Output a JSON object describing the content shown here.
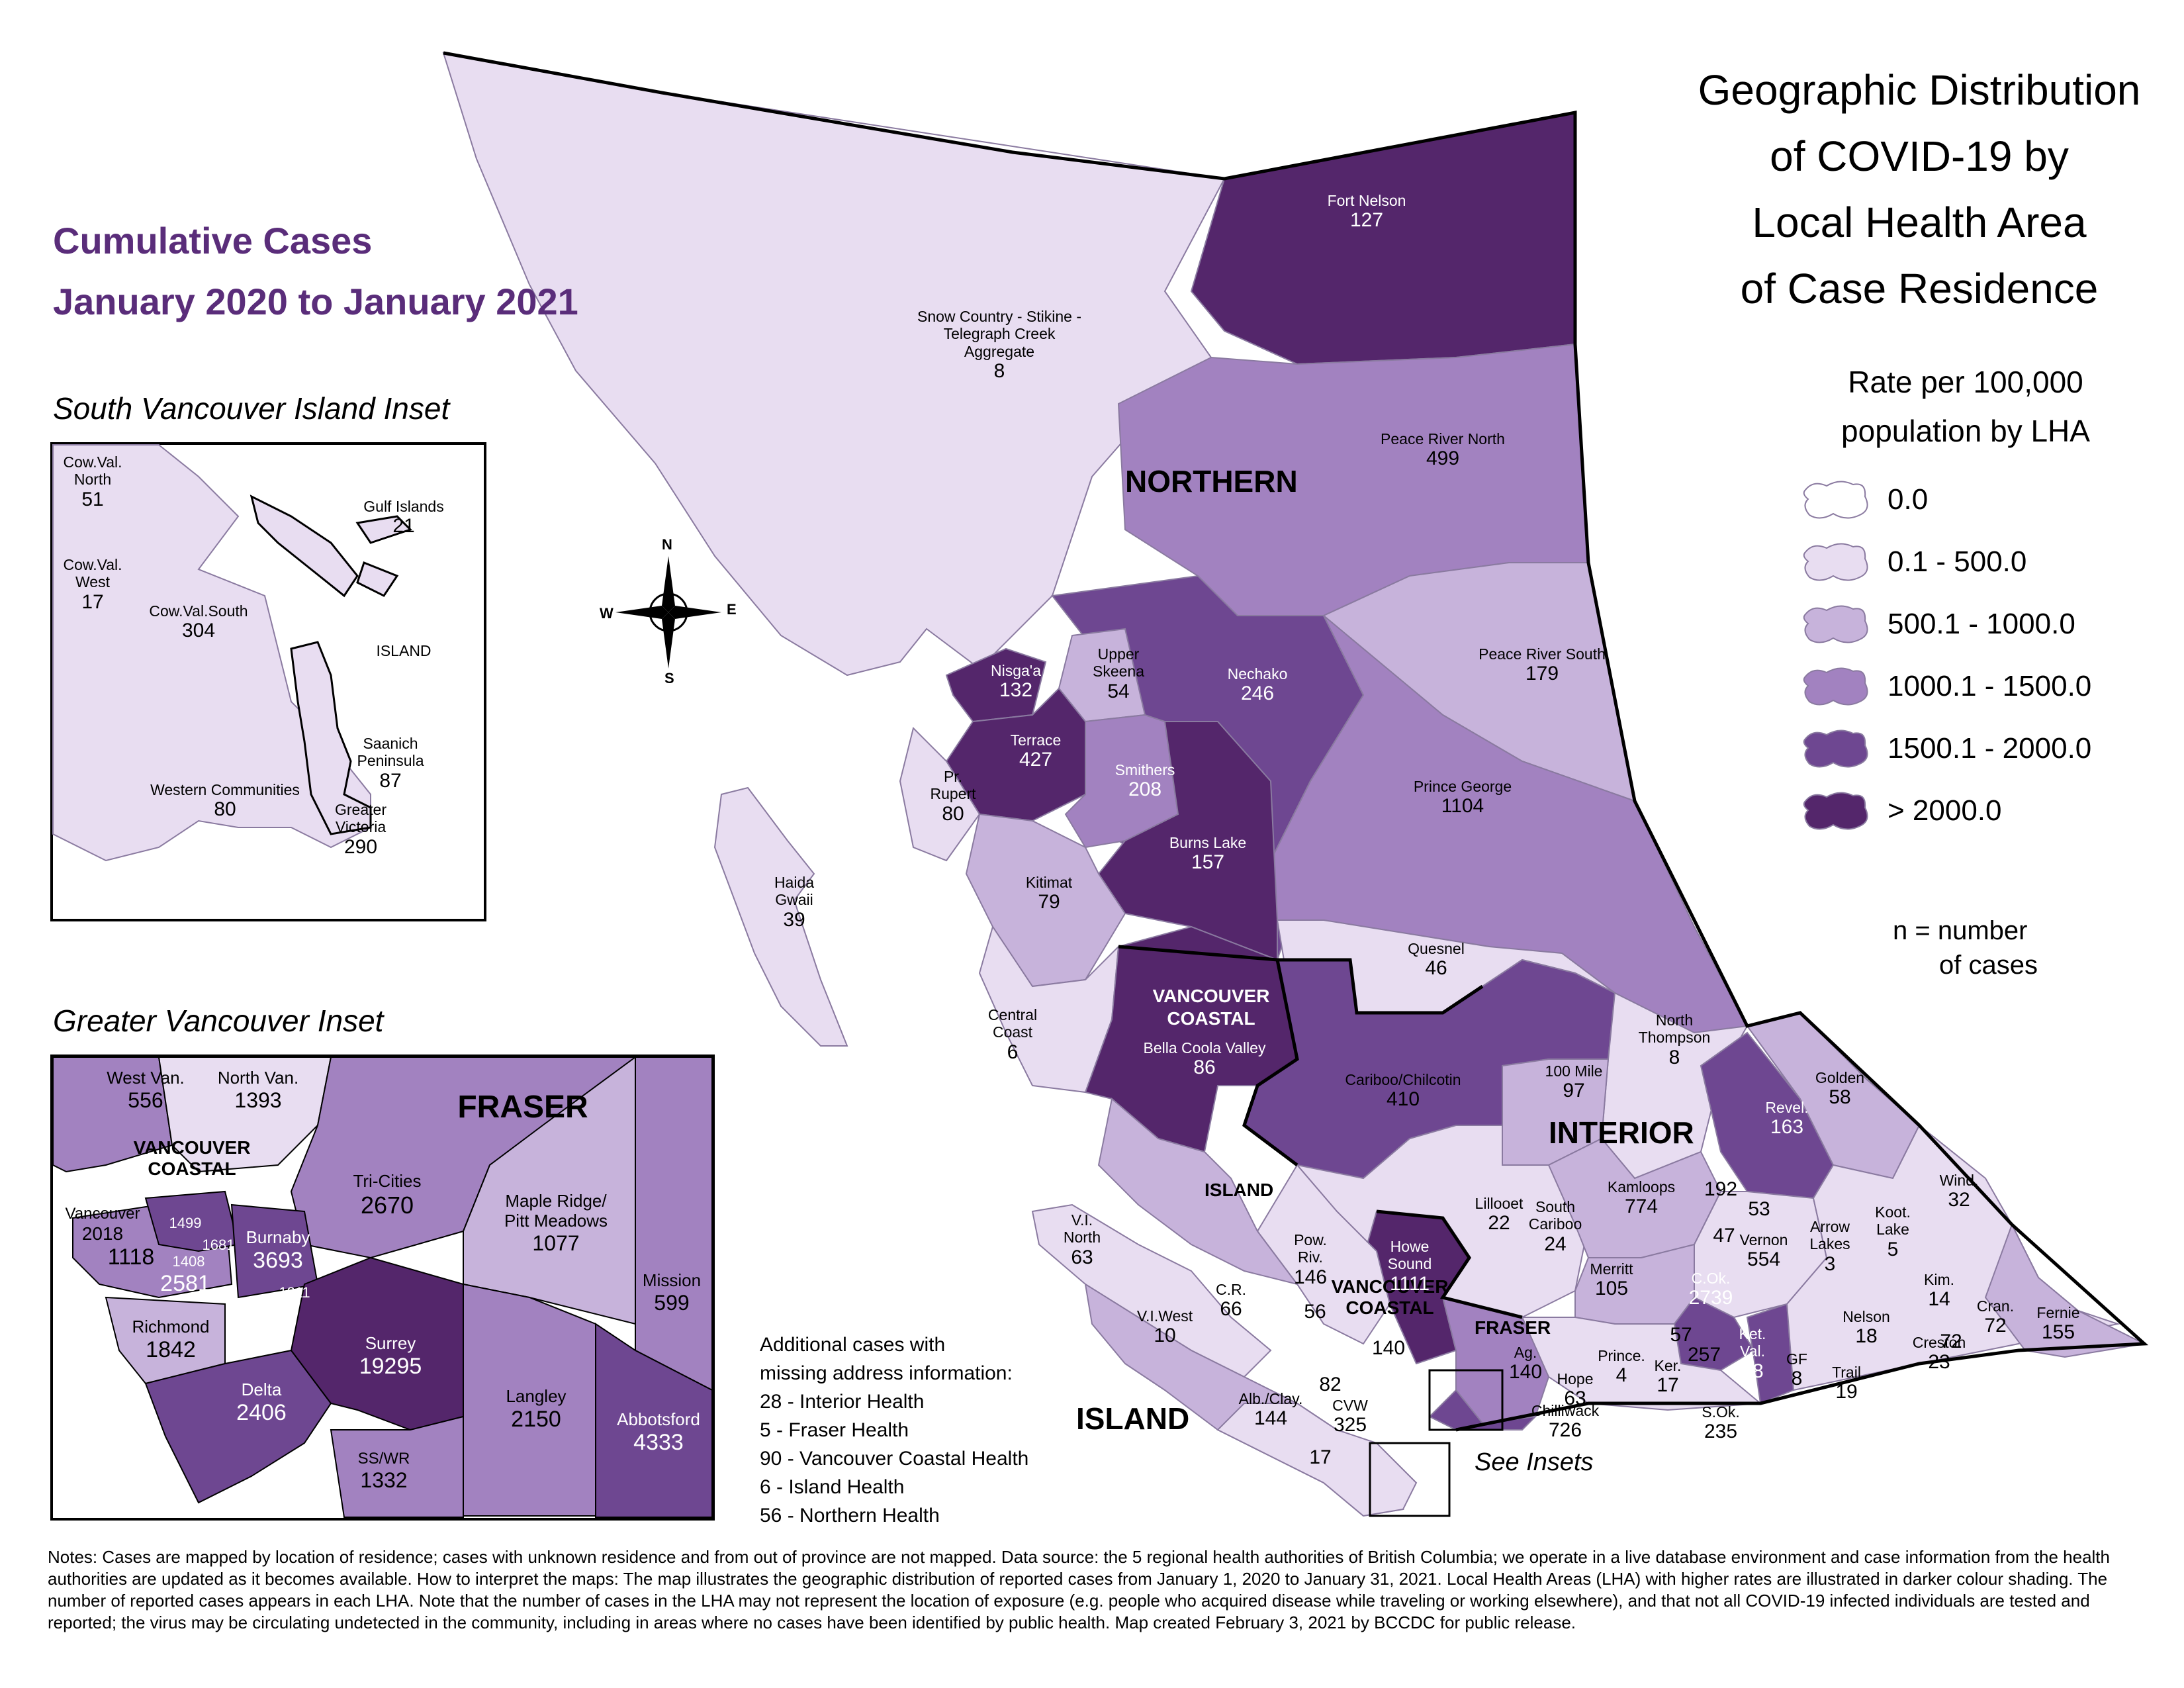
{
  "title": {
    "lines": [
      "Geographic Distribution",
      "of COVID-19 by",
      "Local Health Area",
      "of Case Residence"
    ]
  },
  "subtitle": {
    "line1": "Cumulative Cases",
    "line2": "January 2020 to January 2021"
  },
  "legend": {
    "title_line1": "Rate per 100,000",
    "title_line2": "population by LHA",
    "classes": [
      {
        "label": "0.0",
        "color": "#ffffff"
      },
      {
        "label": "0.1 - 500.0",
        "color": "#e8ddf1"
      },
      {
        "label": "500.1 - 1000.0",
        "color": "#c7b3db"
      },
      {
        "label": "1000.1 - 1500.0",
        "color": "#a282c0"
      },
      {
        "label": "1500.1 - 2000.0",
        "color": "#6e4791"
      },
      {
        "label": "> 2000.0",
        "color": "#54266b"
      }
    ],
    "n_note_line1": "n = number",
    "n_note_line2": "of cases"
  },
  "insets": {
    "south_vi_title": "South Vancouver Island Inset",
    "greater_van_title": "Greater Vancouver Inset",
    "see_insets": "See Insets"
  },
  "compass": {
    "n": "N",
    "s": "S",
    "e": "E",
    "w": "W"
  },
  "missing": {
    "heading1": "Additional cases with",
    "heading2": "missing address information:",
    "items": [
      "28 - Interior Health",
      "5 - Fraser Health",
      "90 - Vancouver Coastal Health",
      "6 - Island Health",
      "56 - Northern Health"
    ]
  },
  "regions": {
    "northern": "NORTHERN",
    "interior": "INTERIOR",
    "island": "ISLAND",
    "fraser": "FRASER",
    "vancouver_coastal_1": "VANCOUVER",
    "vancouver_coastal_2": "COASTAL"
  },
  "map_labels": [
    {
      "name": "Fort Nelson",
      "value": "127"
    },
    {
      "name": "Snow Country - Stikine - Telegraph Creek",
      "name2": "Aggregate",
      "value": "8"
    },
    {
      "name": "Peace River North",
      "value": "499"
    },
    {
      "name": "Peace River South",
      "value": "179"
    },
    {
      "name": "Nechako",
      "value": "246"
    },
    {
      "name": "Upper",
      "name2": "Skeena",
      "value": "54"
    },
    {
      "name": "Nisga'a",
      "value": "132"
    },
    {
      "name": "Terrace",
      "value": "427"
    },
    {
      "name": "Smithers",
      "value": "208"
    },
    {
      "name": "Burns Lake",
      "value": "157"
    },
    {
      "name": "Prince George",
      "value": "1104"
    },
    {
      "name": "Pr.",
      "name2": "Rupert",
      "value": "80"
    },
    {
      "name": "Haida",
      "name2": "Gwaii",
      "value": "39"
    },
    {
      "name": "Kitimat",
      "value": "79"
    },
    {
      "name": "Quesnel",
      "value": "46"
    },
    {
      "name": "Central",
      "name2": "Coast",
      "value": "6"
    },
    {
      "name": "Bella Coola Valley",
      "value": "86"
    },
    {
      "name": "Cariboo/Chilcotin",
      "value": "410"
    },
    {
      "name": "100 Mile",
      "value": "97"
    },
    {
      "name": "North",
      "name2": "Thompson",
      "value": "8"
    },
    {
      "name": "Revel.",
      "value": "163"
    },
    {
      "name": "Golden",
      "value": "58"
    },
    {
      "name": "Kamloops",
      "value": "774"
    },
    {
      "name": "Lillooet",
      "value": "22"
    },
    {
      "name": "South",
      "name2": "Cariboo",
      "value": "24"
    },
    {
      "name": "Vernon",
      "value": "554"
    },
    {
      "name": "Arrow",
      "name2": "Lakes",
      "value": "3"
    },
    {
      "name": "Koot.",
      "name2": "Lake",
      "value": "5"
    },
    {
      "name": "Wind.",
      "value": "32"
    },
    {
      "name": "Merritt",
      "value": "105"
    },
    {
      "name": "C.Ok.",
      "value": "2739"
    },
    {
      "name": "Kim.",
      "value": "14"
    },
    {
      "name": "Nelson",
      "value": "18"
    },
    {
      "name": "Cran.",
      "value": "72"
    },
    {
      "name": "Fernie",
      "value": "155"
    },
    {
      "name": "Creston",
      "value": "23"
    },
    {
      "name": "Ket.",
      "name2": "Val.",
      "value": "58"
    },
    {
      "name": "GF",
      "value": "8"
    },
    {
      "name": "Trail",
      "value": "19"
    },
    {
      "name": "S.Ok.",
      "value": "235"
    },
    {
      "name": "Ker.",
      "value": "17"
    },
    {
      "name": "Prince.",
      "value": "4"
    },
    {
      "name": "Hope",
      "value": "63"
    },
    {
      "name": "Chilliwack",
      "value": "726"
    },
    {
      "name": "Ag.",
      "value": "140"
    },
    {
      "name": "V.I.",
      "name2": "North",
      "value": "63"
    },
    {
      "name": "V.I.West",
      "value": "10"
    },
    {
      "name": "C.R.",
      "value": "66"
    },
    {
      "name": "Pow.",
      "name2": "Riv.",
      "value": "146"
    },
    {
      "name": "Howe",
      "name2": "Sound",
      "value": "1111"
    },
    {
      "name": "Alb./Clay.",
      "value": "144"
    },
    {
      "name": "CVW",
      "value": "325"
    },
    {
      "name": "",
      "value": "82"
    },
    {
      "name": "",
      "value": "17"
    },
    {
      "name": "",
      "value": "56"
    },
    {
      "name": "",
      "value": "140"
    },
    {
      "name": "",
      "value": "57"
    },
    {
      "name": "",
      "value": "257"
    },
    {
      "name": "",
      "value": "47"
    },
    {
      "name": "",
      "value": "53"
    },
    {
      "name": "",
      "value": "192"
    },
    {
      "name": "",
      "value": "72"
    }
  ],
  "svi_labels": [
    {
      "name": "Cow.Val.",
      "name2": "North",
      "value": "51"
    },
    {
      "name": "Gulf Islands",
      "value": "21"
    },
    {
      "name": "Cow.Val.",
      "name2": "West",
      "value": "17"
    },
    {
      "name": "Cow.Val.South",
      "value": "304"
    },
    {
      "name": "ISLAND",
      "value": ""
    },
    {
      "name": "Saanich",
      "name2": "Peninsula",
      "value": "87"
    },
    {
      "name": "Western Communities",
      "value": "80"
    },
    {
      "name": "Greater",
      "name2": "Victoria",
      "value": "290"
    }
  ],
  "gv_labels": [
    {
      "name": "West Van.",
      "value": "556"
    },
    {
      "name": "North Van.",
      "value": "1393"
    },
    {
      "name": "VANCOUVER COASTAL",
      "value": ""
    },
    {
      "name": "FRASER",
      "value": ""
    },
    {
      "name": "Tri-Cities",
      "value": "2670"
    },
    {
      "name": "Maple Ridge/",
      "name2": "Pitt Meadows",
      "value": "1077"
    },
    {
      "name": "Mission",
      "value": "599"
    },
    {
      "name": "Vancouver",
      "value": "2018"
    },
    {
      "name": "",
      "value": "1499"
    },
    {
      "name": "",
      "value": "1681"
    },
    {
      "name": "",
      "value": "1408"
    },
    {
      "name": "",
      "value": "1118"
    },
    {
      "name": "",
      "value": "2581"
    },
    {
      "name": "Burnaby",
      "value": "3693"
    },
    {
      "name": "",
      "value": "1311"
    },
    {
      "name": "Richmond",
      "value": "1842"
    },
    {
      "name": "Surrey",
      "value": "19295"
    },
    {
      "name": "Delta",
      "value": "2406"
    },
    {
      "name": "Langley",
      "value": "2150"
    },
    {
      "name": "Abbotsford",
      "value": "4333"
    },
    {
      "name": "SS/WR",
      "value": "1332"
    }
  ],
  "notes": "Notes: Cases are mapped by location of residence; cases with unknown residence and from out of province are not mapped. Data source: the 5 regional health authorities of British Columbia; we operate in a live database environment and case information from the health authorities are updated as it becomes available. How to interpret the maps: The map illustrates the geographic distribution of reported cases from January 1, 2020 to January 31, 2021. Local Health Areas (LHA) with higher rates are illustrated in darker colour shading. The number of reported cases appears in each LHA. Note that the number of cases in the LHA may not represent the location of exposure (e.g. people who acquired disease while traveling or working elsewhere), and that not all COVID-19 infected individuals are tested and reported; the virus may be circulating undetected in the community, including in areas where no cases have been identified by public health. Map created February 3, 2021 by BCCDC for public release."
}
